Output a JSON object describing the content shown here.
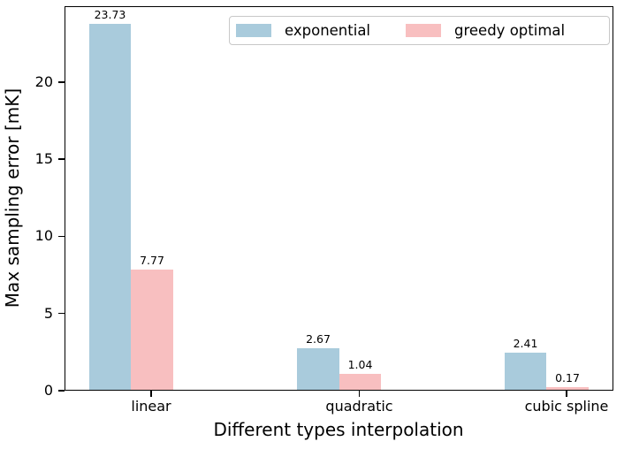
{
  "figure": {
    "background": "#ffffff",
    "axis_color": "#000000",
    "text_color": "#000000",
    "legend_border_color": "#c8c8c8"
  },
  "chart_data": {
    "type": "bar",
    "title": "",
    "xlabel": "Different types interpolation",
    "ylabel": "Max sampling error [mK]",
    "categories": [
      "linear",
      "quadratic",
      "cubic spline"
    ],
    "series": [
      {
        "name": "exponential",
        "color": "#a9cbdc",
        "values": [
          23.73,
          2.67,
          2.41
        ],
        "labels": [
          "23.73",
          "2.67",
          "2.41"
        ]
      },
      {
        "name": "greedy optimal",
        "color": "#f8bfc0",
        "values": [
          7.77,
          1.04,
          0.17
        ],
        "labels": [
          "7.77",
          "1.04",
          "0.17"
        ]
      }
    ],
    "yticks": [
      0,
      5,
      10,
      15,
      20
    ],
    "ytick_labels": [
      "0",
      "5",
      "10",
      "15",
      "20"
    ],
    "ylim": [
      0,
      24.92
    ],
    "grid": false,
    "legend_position": "upper center",
    "bar_value_labels_shown": true
  }
}
